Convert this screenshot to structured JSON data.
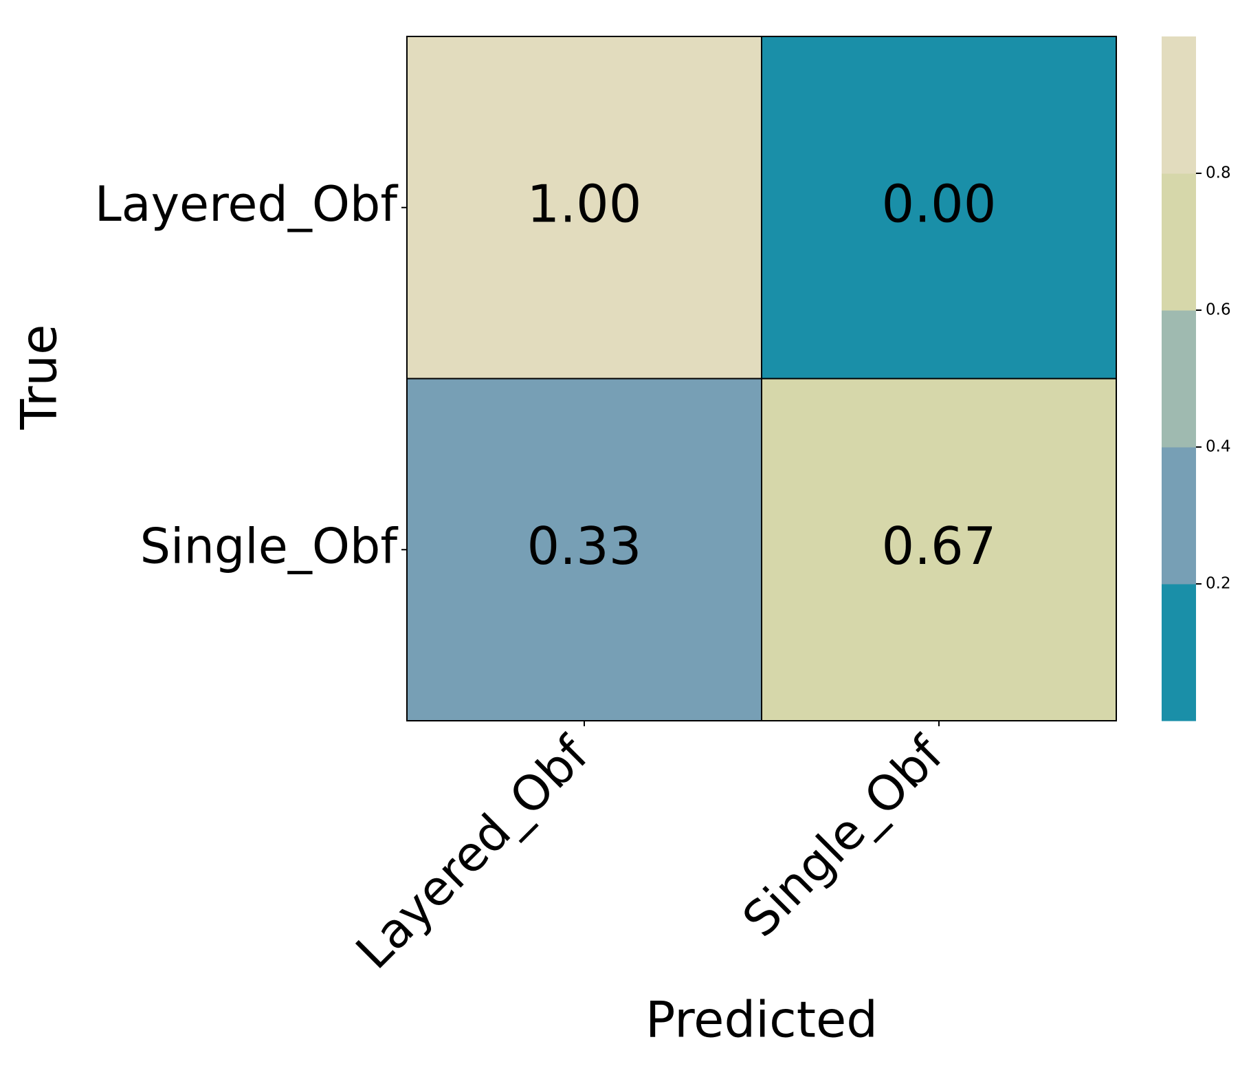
{
  "chart_data": {
    "type": "heatmap",
    "xlabel": "Predicted",
    "ylabel": "True",
    "x_categories": [
      "Layered_Obf",
      "Single_Obf"
    ],
    "y_categories": [
      "Layered_Obf",
      "Single_Obf"
    ],
    "values": [
      [
        1.0,
        0.0
      ],
      [
        0.33,
        0.67
      ]
    ],
    "value_labels": [
      [
        "1.00",
        "0.00"
      ],
      [
        "0.33",
        "0.67"
      ]
    ],
    "colorbar": {
      "lim": [
        0,
        1
      ],
      "ticks": [
        0.2,
        0.4,
        0.6,
        0.8
      ],
      "colors": [
        "#1a8fa8",
        "#779fb5",
        "#9fbab0",
        "#d6d7aa",
        "#e2dcbe"
      ]
    }
  }
}
